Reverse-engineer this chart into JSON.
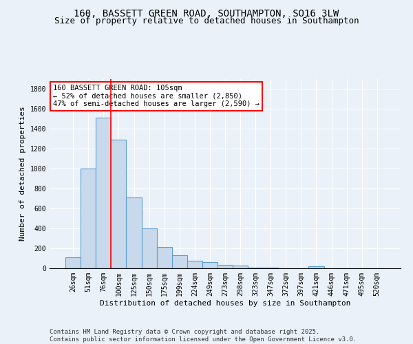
{
  "title": "160, BASSETT GREEN ROAD, SOUTHAMPTON, SO16 3LW",
  "subtitle": "Size of property relative to detached houses in Southampton",
  "xlabel": "Distribution of detached houses by size in Southampton",
  "ylabel": "Number of detached properties",
  "categories": [
    "26sqm",
    "51sqm",
    "76sqm",
    "100sqm",
    "125sqm",
    "150sqm",
    "175sqm",
    "199sqm",
    "224sqm",
    "249sqm",
    "273sqm",
    "298sqm",
    "323sqm",
    "347sqm",
    "372sqm",
    "397sqm",
    "421sqm",
    "446sqm",
    "471sqm",
    "495sqm",
    "520sqm"
  ],
  "values": [
    110,
    1000,
    1510,
    1290,
    710,
    400,
    215,
    130,
    75,
    60,
    35,
    30,
    10,
    10,
    0,
    0,
    20,
    0,
    0,
    0,
    0
  ],
  "bar_color": "#c8d9ec",
  "bar_edge_color": "#5a9fd4",
  "red_line_x": 2.5,
  "annotation_title": "160 BASSETT GREEN ROAD: 105sqm",
  "annotation_line1": "← 52% of detached houses are smaller (2,850)",
  "annotation_line2": "47% of semi-detached houses are larger (2,590) →",
  "annotation_box_color": "white",
  "annotation_border_color": "red",
  "ylim": [
    0,
    1900
  ],
  "yticks": [
    0,
    200,
    400,
    600,
    800,
    1000,
    1200,
    1400,
    1600,
    1800
  ],
  "footer_line1": "Contains HM Land Registry data © Crown copyright and database right 2025.",
  "footer_line2": "Contains public sector information licensed under the Open Government Licence v3.0.",
  "bg_color": "#eaf1f8",
  "grid_color": "white",
  "title_fontsize": 10,
  "subtitle_fontsize": 9,
  "axis_label_fontsize": 8,
  "tick_fontsize": 7,
  "annotation_fontsize": 7.5,
  "footer_fontsize": 6.5
}
